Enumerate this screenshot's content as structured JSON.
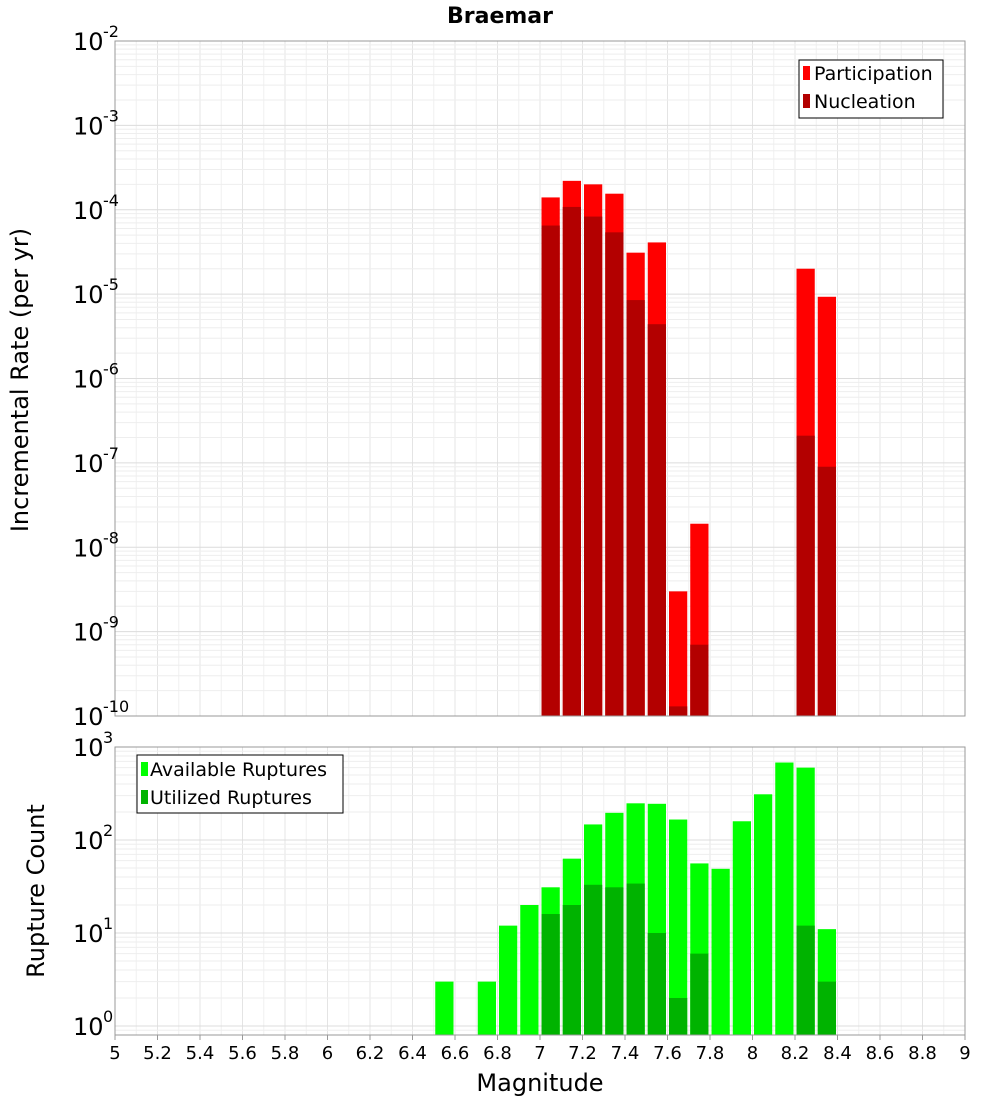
{
  "chart_data": [
    {
      "type": "bar",
      "title": "Braemar",
      "xlabel": "",
      "ylabel": "Incremental Rate (per yr)",
      "yscale": "log",
      "ylim": [
        1e-10,
        0.01
      ],
      "xlim": [
        5,
        9
      ],
      "bar_width": 0.1,
      "ytick_exponents": [
        "-10",
        "-9",
        "-8",
        "-7",
        "-6",
        "-5",
        "-4",
        "-3",
        "-2"
      ],
      "legend": {
        "position": "top-right",
        "entries": [
          "Participation",
          "Nucleation"
        ]
      },
      "grid": true,
      "colors": {
        "Participation": "#ff0000",
        "Nucleation": "#b30000"
      },
      "x": [
        7.05,
        7.15,
        7.25,
        7.35,
        7.45,
        7.55,
        7.65,
        7.75,
        8.25,
        8.35
      ],
      "series": [
        {
          "name": "Participation",
          "values": [
            0.00014,
            0.00022,
            0.0002,
            0.000155,
            3.1e-05,
            4.1e-05,
            3e-09,
            1.9e-08,
            2e-05,
            9.3e-06
          ]
        },
        {
          "name": "Nucleation",
          "values": [
            6.5e-05,
            0.000108,
            8.3e-05,
            5.4e-05,
            8.5e-06,
            4.4e-06,
            1.3e-10,
            7e-10,
            2.1e-07,
            9e-08
          ]
        }
      ]
    },
    {
      "type": "bar",
      "title": "",
      "xlabel": "Magnitude",
      "ylabel": "Rupture Count",
      "yscale": "log",
      "ylim": [
        0.8,
        1000
      ],
      "xlim": [
        5,
        9
      ],
      "bar_width": 0.1,
      "ytick_exponents": [
        "0",
        "1",
        "2",
        "3"
      ],
      "xticks": [
        "5",
        "5.2",
        "5.4",
        "5.6",
        "5.8",
        "6",
        "6.2",
        "6.4",
        "6.6",
        "6.8",
        "7",
        "7.2",
        "7.4",
        "7.6",
        "7.8",
        "8",
        "8.2",
        "8.4",
        "8.6",
        "8.8",
        "9"
      ],
      "legend": {
        "position": "top-left",
        "entries": [
          "Available Ruptures",
          "Utilized Ruptures"
        ]
      },
      "grid": true,
      "colors": {
        "Available Ruptures": "#00ff00",
        "Utilized Ruptures": "#00b300"
      },
      "x": [
        6.55,
        6.75,
        6.85,
        6.95,
        7.05,
        7.15,
        7.25,
        7.35,
        7.45,
        7.55,
        7.65,
        7.75,
        7.85,
        7.95,
        8.05,
        8.15,
        8.25,
        8.35
      ],
      "series": [
        {
          "name": "Available Ruptures",
          "values": [
            3,
            3,
            12,
            20,
            31,
            63,
            147,
            196,
            248,
            245,
            166,
            56,
            49,
            159,
            310,
            681,
            600,
            11
          ]
        },
        {
          "name": "Utilized Ruptures",
          "values": [
            0,
            0,
            0,
            0,
            16,
            20,
            33,
            31,
            34,
            10,
            2,
            6,
            0,
            0,
            0,
            0,
            12,
            3
          ]
        }
      ]
    }
  ]
}
